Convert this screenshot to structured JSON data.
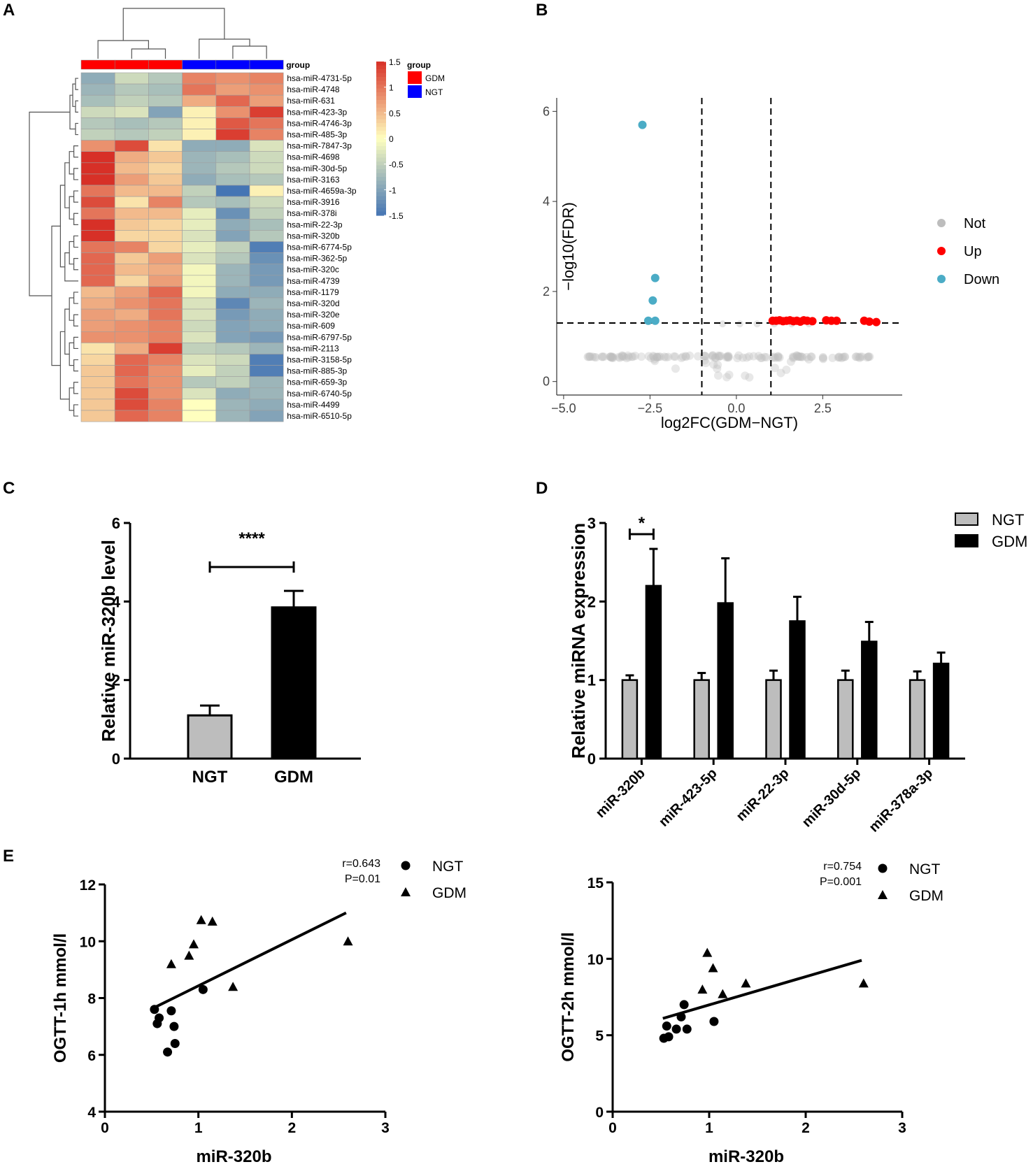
{
  "panels": {
    "A": "A",
    "B": "B",
    "C": "C",
    "D": "D",
    "E": "E"
  },
  "colors": {
    "gdm": "#ff0000",
    "ngt": "#0000ff",
    "not": "#bdbdbd",
    "up": "#ff0000",
    "down": "#4bacc6",
    "bar_ngt": "#bdbdbd",
    "bar_gdm": "#000000",
    "heat_low": "#4575b4",
    "heat_mid": "#ffffbf",
    "heat_high": "#d73027"
  },
  "chart_data": [
    {
      "panel": "A",
      "type": "heatmap",
      "annotation_label": "group",
      "column_groups": [
        "GDM",
        "GDM",
        "GDM",
        "NGT",
        "NGT",
        "NGT"
      ],
      "rows": [
        "hsa-miR-4731-5p",
        "hsa-miR-4748",
        "hsa-miR-631",
        "hsa-miR-423-3p",
        "hsa-miR-4746-3p",
        "hsa-miR-485-3p",
        "hsa-miR-7847-3p",
        "hsa-miR-4698",
        "hsa-miR-30d-5p",
        "hsa-miR-3163",
        "hsa-miR-4659a-3p",
        "hsa-miR-3916",
        "hsa-miR-378i",
        "hsa-miR-22-3p",
        "hsa-miR-320b",
        "hsa-miR-6774-5p",
        "hsa-miR-362-5p",
        "hsa-miR-320c",
        "hsa-miR-4739",
        "hsa-miR-1179",
        "hsa-miR-320d",
        "hsa-miR-320e",
        "hsa-miR-609",
        "hsa-miR-6797-5p",
        "hsa-miR-2113",
        "hsa-miR-3158-5p",
        "hsa-miR-885-3p",
        "hsa-miR-659-3p",
        "hsa-miR-6740-5p",
        "hsa-miR-4499",
        "hsa-miR-6510-5p"
      ],
      "values": [
        [
          -0.9,
          -0.4,
          -0.6,
          0.9,
          0.8,
          0.9
        ],
        [
          -0.8,
          -0.6,
          -0.7,
          1.0,
          0.7,
          0.8
        ],
        [
          -0.7,
          -0.5,
          -0.6,
          0.6,
          1.1,
          0.7
        ],
        [
          -0.4,
          -0.3,
          -1.0,
          0.1,
          0.8,
          1.4
        ],
        [
          -0.6,
          -0.7,
          -0.6,
          0.1,
          1.2,
          1.0
        ],
        [
          -0.5,
          -0.6,
          -0.5,
          0.1,
          1.4,
          0.9
        ],
        [
          0.8,
          1.3,
          0.2,
          -0.9,
          -0.9,
          -0.3
        ],
        [
          1.5,
          0.6,
          0.4,
          -0.8,
          -0.7,
          -0.4
        ],
        [
          1.5,
          0.5,
          0.3,
          -0.8,
          -0.6,
          -0.4
        ],
        [
          1.5,
          0.7,
          0.4,
          -0.9,
          -0.7,
          -0.6
        ],
        [
          1.0,
          0.5,
          0.5,
          -0.5,
          -1.5,
          0.1
        ],
        [
          1.3,
          0.2,
          0.9,
          -0.6,
          -0.7,
          -0.4
        ],
        [
          1.0,
          0.5,
          0.5,
          -0.2,
          -1.2,
          -0.5
        ],
        [
          1.5,
          0.4,
          0.3,
          -0.2,
          -0.9,
          -0.7
        ],
        [
          1.5,
          0.3,
          0.3,
          -0.3,
          -1.0,
          -0.6
        ],
        [
          1.0,
          0.9,
          0.3,
          -0.2,
          -0.5,
          -1.4
        ],
        [
          1.1,
          0.4,
          0.7,
          -0.3,
          -0.6,
          -1.2
        ],
        [
          1.1,
          0.5,
          0.6,
          -0.1,
          -0.8,
          -1.1
        ],
        [
          1.1,
          0.3,
          0.7,
          -0.1,
          -0.8,
          -1.1
        ],
        [
          0.5,
          0.7,
          1.1,
          -0.1,
          -0.9,
          -0.9
        ],
        [
          0.6,
          0.8,
          1.0,
          -0.3,
          -1.3,
          -0.8
        ],
        [
          0.7,
          0.6,
          1.0,
          -0.3,
          -1.1,
          -0.9
        ],
        [
          0.7,
          0.8,
          0.9,
          -0.4,
          -1.0,
          -0.9
        ],
        [
          0.8,
          0.8,
          0.9,
          -0.3,
          -1.0,
          -1.1
        ],
        [
          0.2,
          0.6,
          1.4,
          -0.5,
          -0.6,
          -0.8
        ],
        [
          0.3,
          1.1,
          0.9,
          -0.3,
          -0.4,
          -1.4
        ],
        [
          0.4,
          1.1,
          0.8,
          -0.2,
          -0.5,
          -1.4
        ],
        [
          0.4,
          1.0,
          0.8,
          -0.6,
          -0.5,
          -0.8
        ],
        [
          0.4,
          1.3,
          0.8,
          -0.3,
          -0.9,
          -0.8
        ],
        [
          0.4,
          1.3,
          0.9,
          0.0,
          -0.8,
          -0.9
        ],
        [
          0.4,
          1.1,
          0.9,
          0.0,
          -0.8,
          -1.0
        ]
      ],
      "legend_ticks": [
        "1.5",
        "1",
        "0.5",
        "0",
        "-0.5",
        "-1",
        "-1.5"
      ],
      "legend_values": [
        1.5,
        1,
        0.5,
        0,
        -0.5,
        -1,
        -1.5
      ],
      "color_range": [
        -1.5,
        1.5
      ],
      "group_legend": {
        "title": "group",
        "items": [
          "GDM",
          "NGT"
        ]
      }
    },
    {
      "panel": "B",
      "type": "scatter",
      "xlabel": "log2FC(GDM−NGT)",
      "ylabel": "−log10(FDR)",
      "xlim": [
        -5.2,
        4.8
      ],
      "ylim": [
        -0.3,
        6.3
      ],
      "xticks": [
        -5.0,
        -2.5,
        0.0,
        2.5
      ],
      "xtick_labels": [
        "−5.0",
        "−2.5",
        "0.0",
        "2.5"
      ],
      "yticks": [
        0,
        2,
        4,
        6
      ],
      "ytick_labels": [
        "0",
        "2",
        "4",
        "6"
      ],
      "vlines": [
        -1,
        1
      ],
      "hline": 1.3,
      "legend": [
        "Not",
        "Up",
        "Down"
      ],
      "up_points": [
        [
          1.05,
          1.35
        ],
        [
          1.15,
          1.35
        ],
        [
          1.25,
          1.36
        ],
        [
          1.35,
          1.34
        ],
        [
          1.45,
          1.35
        ],
        [
          1.55,
          1.36
        ],
        [
          1.65,
          1.34
        ],
        [
          1.75,
          1.35
        ],
        [
          1.85,
          1.33
        ],
        [
          1.95,
          1.36
        ],
        [
          2.05,
          1.35
        ],
        [
          2.2,
          1.34
        ],
        [
          2.6,
          1.36
        ],
        [
          2.75,
          1.35
        ],
        [
          2.9,
          1.35
        ],
        [
          3.7,
          1.35
        ],
        [
          3.85,
          1.33
        ],
        [
          4.05,
          1.32
        ]
      ],
      "down_points": [
        [
          -2.72,
          5.7
        ],
        [
          -2.35,
          2.3
        ],
        [
          -2.42,
          1.8
        ],
        [
          -2.55,
          1.35
        ],
        [
          -2.35,
          1.35
        ]
      ],
      "not_n": 140
    },
    {
      "panel": "C",
      "type": "bar",
      "categories": [
        "NGT",
        "GDM"
      ],
      "values": [
        1.1,
        3.85
      ],
      "errors": [
        0.25,
        0.42
      ],
      "ylabel": "Relative miR-320b level",
      "ylim": [
        0,
        6
      ],
      "yticks": [
        0,
        2,
        4,
        6
      ],
      "ytick_labels": [
        "0",
        "2",
        "4",
        "6"
      ],
      "significance": "****"
    },
    {
      "panel": "D",
      "type": "bar",
      "categories": [
        "miR-320b",
        "miR-423-5p",
        "miR-22-3p",
        "miR-30d-5p",
        "miR-378a-3p"
      ],
      "series": [
        {
          "name": "NGT",
          "values": [
            1.0,
            1.0,
            1.0,
            1.0,
            1.0
          ],
          "errors": [
            0.06,
            0.09,
            0.12,
            0.12,
            0.11
          ]
        },
        {
          "name": "GDM",
          "values": [
            2.2,
            1.98,
            1.75,
            1.49,
            1.21
          ],
          "errors": [
            0.47,
            0.57,
            0.31,
            0.25,
            0.14
          ]
        }
      ],
      "ylabel": "Relative miRNA expression",
      "ylim": [
        0,
        3
      ],
      "yticks": [
        0,
        1,
        2,
        3
      ],
      "ytick_labels": [
        "0",
        "1",
        "2",
        "3"
      ],
      "significance": "*"
    },
    {
      "panel": "E-left",
      "type": "scatter",
      "xlabel": "miR-320b",
      "ylabel": "OGTT-1h mmol/l",
      "xlim": [
        0,
        3
      ],
      "ylim": [
        4,
        12
      ],
      "xticks": [
        0,
        1,
        2,
        3
      ],
      "xtick_labels": [
        "0",
        "1",
        "2",
        "3"
      ],
      "yticks": [
        4,
        6,
        8,
        10,
        12
      ],
      "ytick_labels": [
        "4",
        "6",
        "8",
        "10",
        "12"
      ],
      "r": "r=0.643",
      "p": "P=0.01",
      "legend": [
        "NGT",
        "GDM"
      ],
      "ngt_points": [
        [
          0.53,
          7.6
        ],
        [
          0.56,
          7.1
        ],
        [
          0.58,
          7.3
        ],
        [
          0.67,
          6.1
        ],
        [
          0.71,
          7.55
        ],
        [
          0.74,
          7.0
        ],
        [
          0.75,
          6.4
        ],
        [
          1.05,
          8.3
        ]
      ],
      "gdm_points": [
        [
          0.71,
          9.2
        ],
        [
          0.9,
          9.5
        ],
        [
          0.95,
          9.9
        ],
        [
          1.03,
          10.75
        ],
        [
          1.15,
          10.7
        ],
        [
          1.37,
          8.4
        ],
        [
          2.6,
          10.0
        ]
      ],
      "fit_line": [
        [
          0.52,
          7.65
        ],
        [
          2.58,
          11.0
        ]
      ]
    },
    {
      "panel": "E-right",
      "type": "scatter",
      "xlabel": "miR-320b",
      "ylabel": "OGTT-2h mmol/l",
      "xlim": [
        0,
        3
      ],
      "ylim": [
        0,
        15
      ],
      "xticks": [
        0,
        1,
        2,
        3
      ],
      "xtick_labels": [
        "0",
        "1",
        "2",
        "3"
      ],
      "yticks": [
        0,
        5,
        10,
        15
      ],
      "ytick_labels": [
        "0",
        "5",
        "10",
        "15"
      ],
      "r": "r=0.754",
      "p": "P=0.001",
      "legend": [
        "NGT",
        "GDM"
      ],
      "ngt_points": [
        [
          0.53,
          4.8
        ],
        [
          0.56,
          5.6
        ],
        [
          0.58,
          4.9
        ],
        [
          0.66,
          5.4
        ],
        [
          0.71,
          6.2
        ],
        [
          0.74,
          7.0
        ],
        [
          0.77,
          5.4
        ],
        [
          1.05,
          5.9
        ]
      ],
      "gdm_points": [
        [
          0.93,
          8.0
        ],
        [
          0.98,
          10.4
        ],
        [
          1.04,
          9.4
        ],
        [
          1.14,
          7.7
        ],
        [
          1.38,
          8.4
        ],
        [
          2.6,
          8.4
        ]
      ],
      "fit_line": [
        [
          0.52,
          6.1
        ],
        [
          2.58,
          9.9
        ]
      ]
    }
  ]
}
